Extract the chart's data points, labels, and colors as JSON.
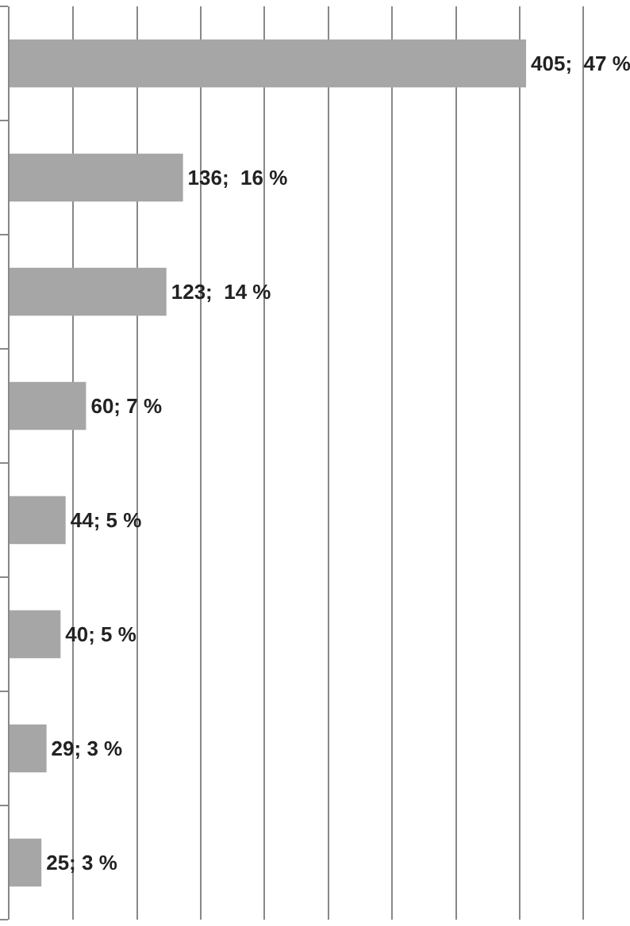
{
  "chart_data": {
    "type": "bar",
    "orientation": "horizontal",
    "categories": [
      null,
      null,
      null,
      null,
      null,
      null,
      null,
      null
    ],
    "values": [
      405,
      136,
      123,
      60,
      44,
      40,
      29,
      25
    ],
    "value_labels": [
      "405;  47 %",
      "136;  16 %",
      "123;  14 %",
      "60; 7 %",
      "44; 5 %",
      "40; 5 %",
      "29; 3 %",
      "25; 3 %"
    ],
    "color": "#a6a6a6",
    "xlim": [
      0,
      484
    ],
    "xticks": [
      {
        "value": 0,
        "label": null
      },
      {
        "value": 50,
        "label": null
      },
      {
        "value": 100,
        "label": null
      },
      {
        "value": 150,
        "label": null
      },
      {
        "value": 200,
        "label": null
      },
      {
        "value": 250,
        "label": null
      },
      {
        "value": 300,
        "label": null
      },
      {
        "value": 350,
        "label": null
      },
      {
        "value": 400,
        "label": null
      },
      {
        "value": 450,
        "label": null
      }
    ],
    "grid": "x"
  }
}
